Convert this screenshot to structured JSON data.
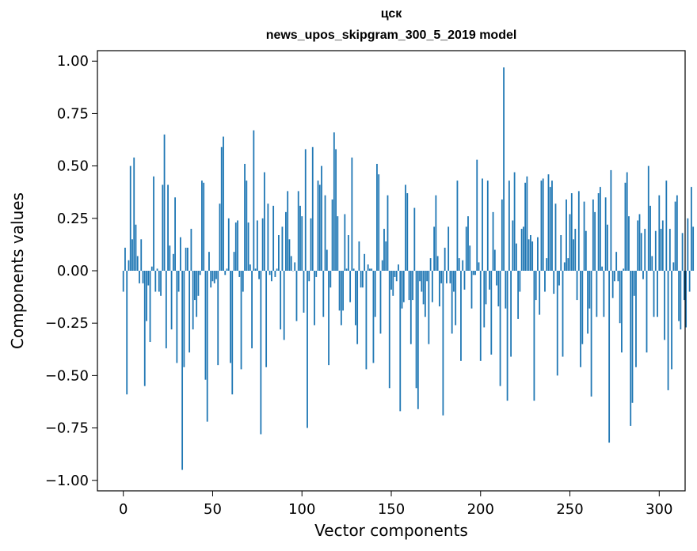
{
  "chart_data": {
    "type": "bar",
    "title": "цск",
    "subtitle": "news_upos_skipgram_300_5_2019 model",
    "xlabel": "Vector components",
    "ylabel": "Components values",
    "xlim": [
      -14.5,
      314.5
    ],
    "ylim": [
      -1.05,
      1.05
    ],
    "xticks": [
      0,
      50,
      100,
      150,
      200,
      250,
      300
    ],
    "yticks": [
      -1.0,
      -0.75,
      -0.5,
      -0.25,
      0.0,
      0.25,
      0.5,
      0.75,
      1.0
    ],
    "ytick_labels": [
      "−1.00",
      "−0.75",
      "−0.50",
      "−0.25",
      "0.00",
      "0.25",
      "0.50",
      "0.75",
      "1.00"
    ],
    "grid": false,
    "bar_color": "#1f77b4",
    "values": [
      -0.1,
      0.11,
      -0.59,
      0.05,
      0.5,
      0.15,
      0.54,
      0.22,
      0.07,
      -0.06,
      0.15,
      -0.06,
      -0.55,
      -0.24,
      -0.07,
      -0.34,
      0.02,
      0.45,
      -0.1,
      0.01,
      -0.1,
      -0.12,
      0.41,
      0.65,
      -0.37,
      0.41,
      0.12,
      -0.28,
      0.08,
      0.35,
      -0.44,
      -0.1,
      0.16,
      -0.95,
      -0.46,
      0.11,
      0.11,
      -0.39,
      0.2,
      -0.28,
      -0.14,
      -0.22,
      -0.12,
      -0.02,
      0.43,
      0.42,
      -0.52,
      -0.72,
      0.09,
      -0.08,
      -0.05,
      -0.06,
      -0.04,
      -0.45,
      0.32,
      0.59,
      0.64,
      -0.02,
      0.01,
      0.25,
      -0.44,
      -0.59,
      0.09,
      0.23,
      0.24,
      -0.03,
      -0.47,
      -0.1,
      0.51,
      0.43,
      0.23,
      0.03,
      -0.37,
      0.67,
      0.01,
      0.24,
      -0.04,
      -0.78,
      0.25,
      0.47,
      -0.46,
      0.32,
      -0.02,
      -0.05,
      0.31,
      -0.03,
      0.01,
      0.17,
      -0.28,
      0.21,
      -0.33,
      0.28,
      0.38,
      0.15,
      0.07,
      0.0,
      0.04,
      -0.24,
      0.38,
      0.31,
      0.26,
      -0.2,
      0.58,
      -0.75,
      -0.05,
      0.25,
      0.59,
      -0.26,
      -0.03,
      0.43,
      0.41,
      0.5,
      -0.22,
      0.36,
      0.1,
      -0.45,
      -0.08,
      0.34,
      0.66,
      0.58,
      0.26,
      -0.19,
      -0.26,
      -0.19,
      0.27,
      0.01,
      0.17,
      -0.15,
      0.54,
      0.01,
      -0.26,
      -0.35,
      0.14,
      -0.08,
      -0.08,
      0.08,
      -0.47,
      0.03,
      0.01,
      0.01,
      -0.44,
      -0.22,
      0.51,
      0.46,
      -0.3,
      0.05,
      0.2,
      0.14,
      0.36,
      -0.56,
      -0.09,
      -0.12,
      -0.03,
      -0.05,
      0.03,
      -0.67,
      -0.18,
      -0.15,
      0.41,
      0.37,
      -0.14,
      -0.35,
      -0.14,
      0.3,
      -0.56,
      -0.66,
      -0.05,
      -0.1,
      -0.16,
      -0.22,
      -0.05,
      -0.35,
      0.06,
      -0.15,
      0.21,
      0.36,
      0.07,
      -0.17,
      -0.06,
      -0.69,
      0.11,
      -0.06,
      0.21,
      -0.06,
      -0.3,
      -0.1,
      -0.26,
      0.43,
      0.06,
      -0.43,
      0.05,
      -0.09,
      0.21,
      0.26,
      0.12,
      -0.18,
      -0.02,
      -0.02,
      0.53,
      0.04,
      -0.43,
      0.44,
      -0.27,
      -0.16,
      0.43,
      -0.09,
      -0.4,
      0.28,
      0.1,
      -0.07,
      -0.17,
      -0.55,
      0.34,
      0.97,
      -0.18,
      -0.62,
      0.43,
      -0.41,
      0.24,
      0.47,
      0.13,
      -0.23,
      -0.1,
      0.2,
      0.21,
      0.42,
      0.45,
      0.15,
      0.17,
      0.14,
      -0.62,
      -0.14,
      0.16,
      -0.21,
      0.43,
      0.44,
      -0.1,
      0.06,
      0.46,
      0.4,
      0.43,
      -0.11,
      0.32,
      -0.5,
      -0.07,
      0.17,
      -0.41,
      0.04,
      0.34,
      0.06,
      0.27,
      0.37,
      0.15,
      0.2,
      -0.14,
      0.38,
      -0.46,
      -0.35,
      0.33,
      0.19,
      -0.3,
      -0.18,
      -0.6,
      0.34,
      0.28,
      -0.22,
      0.37,
      0.4,
      0.02,
      -0.22,
      0.35,
      0.22,
      -0.82,
      0.48,
      -0.13,
      -0.05,
      0.09,
      -0.05,
      -0.25,
      -0.39,
      0.01,
      0.42,
      0.47,
      0.26,
      -0.74,
      -0.63,
      -0.12,
      -0.46,
      0.24,
      0.27,
      0.18,
      -0.04,
      0.2,
      -0.39,
      0.5,
      0.31,
      0.07,
      -0.22,
      0.19,
      -0.22,
      0.36,
      0.2,
      0.24,
      -0.33,
      0.43,
      -0.57,
      0.2,
      -0.47,
      0.04,
      0.33,
      0.36,
      -0.24,
      -0.28,
      0.18,
      -0.14,
      -0.27,
      0.25,
      -0.1,
      0.4,
      0.21
    ]
  }
}
